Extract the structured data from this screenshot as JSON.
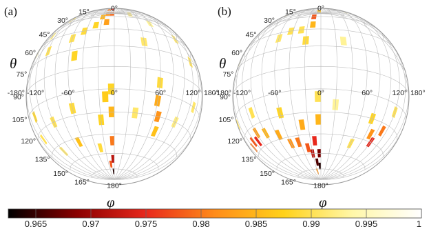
{
  "chart_data": {
    "type": "heatmap",
    "projection": "orthographic sphere, phi (azimuth) vs theta (polar)",
    "colormap": [
      "#000000",
      "#8b0000",
      "#e8281c",
      "#ff8c1a",
      "#ffd21a",
      "#fff7a8",
      "#ffffff"
    ],
    "colorbar": {
      "min": 0.9625,
      "max": 1.0,
      "ticks": [
        0.965,
        0.97,
        0.975,
        0.98,
        0.985,
        0.99,
        0.995,
        1
      ],
      "tick_labels": [
        "0.965",
        "0.97",
        "0.975",
        "0.98",
        "0.985",
        "0.99",
        "0.995",
        "1"
      ]
    },
    "theta_symbol": "θ",
    "phi_symbol": "φ",
    "theta_ticks": [
      "0°",
      "15°",
      "30°",
      "45°",
      "60°",
      "75°",
      "90°",
      "105°",
      "120°",
      "135°",
      "150°",
      "165°",
      "180°"
    ],
    "phi_ticks": [
      "-180°",
      "-120°",
      "-60°",
      "0°",
      "60°",
      "120°",
      "180°"
    ],
    "panels": [
      {
        "label": "(a)",
        "cells": [
          {
            "phi": -4,
            "theta": 8,
            "value": 0.968
          },
          {
            "phi": -4,
            "theta": 18,
            "value": 0.97
          },
          {
            "phi": -4,
            "theta": 28,
            "value": 0.975
          },
          {
            "phi": -12,
            "theta": 30,
            "value": 0.98
          },
          {
            "phi": -12,
            "theta": 40,
            "value": 0.982
          },
          {
            "phi": -4,
            "theta": 40,
            "value": 0.979
          },
          {
            "phi": -20,
            "theta": 45,
            "value": 0.985
          },
          {
            "phi": -12,
            "theta": 52,
            "value": 0.983
          },
          {
            "phi": -28,
            "theta": 55,
            "value": 0.988
          },
          {
            "phi": -44,
            "theta": 60,
            "value": 0.989
          },
          {
            "phi": -60,
            "theta": 65,
            "value": 0.99
          },
          {
            "phi": -52,
            "theta": 80,
            "value": 0.988
          },
          {
            "phi": -90,
            "theta": 40,
            "value": 0.991
          },
          {
            "phi": -100,
            "theta": 70,
            "value": 0.99
          },
          {
            "phi": -110,
            "theta": 55,
            "value": 0.992
          },
          {
            "phi": -140,
            "theta": 65,
            "value": 0.993
          },
          {
            "phi": 30,
            "theta": 40,
            "value": 0.992
          },
          {
            "phi": 40,
            "theta": 70,
            "value": 0.991
          },
          {
            "phi": 60,
            "theta": 50,
            "value": 0.993
          },
          {
            "phi": 100,
            "theta": 60,
            "value": 0.991
          },
          {
            "phi": 120,
            "theta": 75,
            "value": 0.99
          },
          {
            "phi": -4,
            "theta": 105,
            "value": 0.988
          },
          {
            "phi": -12,
            "theta": 110,
            "value": 0.987
          },
          {
            "phi": -4,
            "theta": 120,
            "value": 0.985
          },
          {
            "phi": -20,
            "theta": 125,
            "value": 0.988
          },
          {
            "phi": -4,
            "theta": 140,
            "value": 0.98
          },
          {
            "phi": -4,
            "theta": 155,
            "value": 0.972
          },
          {
            "phi": -4,
            "theta": 168,
            "value": 0.964
          },
          {
            "phi": -12,
            "theta": 160,
            "value": 0.978
          },
          {
            "phi": 60,
            "theta": 110,
            "value": 0.984
          },
          {
            "phi": 66,
            "theta": 120,
            "value": 0.982
          },
          {
            "phi": 70,
            "theta": 130,
            "value": 0.986
          },
          {
            "phi": 60,
            "theta": 98,
            "value": 0.989
          },
          {
            "phi": -60,
            "theta": 115,
            "value": 0.989
          },
          {
            "phi": -70,
            "theta": 138,
            "value": 0.986
          },
          {
            "phi": -100,
            "theta": 120,
            "value": 0.99
          },
          {
            "phi": -140,
            "theta": 110,
            "value": 0.988
          },
          {
            "phi": -150,
            "theta": 125,
            "value": 0.99
          },
          {
            "phi": -120,
            "theta": 140,
            "value": 0.991
          },
          {
            "phi": 30,
            "theta": 120,
            "value": 0.991
          },
          {
            "phi": 100,
            "theta": 120,
            "value": 0.992
          },
          {
            "phi": 130,
            "theta": 105,
            "value": 0.991
          },
          {
            "phi": -30,
            "theta": 145,
            "value": 0.989
          }
        ]
      },
      {
        "label": "(b)",
        "cells": [
          {
            "phi": -4,
            "theta": 20,
            "value": 0.99
          },
          {
            "phi": -4,
            "theta": 35,
            "value": 0.986
          },
          {
            "phi": -12,
            "theta": 45,
            "value": 0.978
          },
          {
            "phi": -12,
            "theta": 55,
            "value": 0.985
          },
          {
            "phi": -28,
            "theta": 60,
            "value": 0.99
          },
          {
            "phi": -44,
            "theta": 60,
            "value": 0.99
          },
          {
            "phi": -60,
            "theta": 65,
            "value": 0.991
          },
          {
            "phi": -20,
            "theta": 70,
            "value": 0.989
          },
          {
            "phi": -110,
            "theta": 28,
            "value": 0.99
          },
          {
            "phi": 60,
            "theta": 30,
            "value": 0.993
          },
          {
            "phi": -150,
            "theta": 70,
            "value": 0.992
          },
          {
            "phi": 30,
            "theta": 70,
            "value": 0.993
          },
          {
            "phi": -4,
            "theta": 110,
            "value": 0.99
          },
          {
            "phi": -4,
            "theta": 125,
            "value": 0.985
          },
          {
            "phi": -12,
            "theta": 140,
            "value": 0.975
          },
          {
            "phi": -4,
            "theta": 150,
            "value": 0.968
          },
          {
            "phi": -4,
            "theta": 162,
            "value": 0.964
          },
          {
            "phi": -12,
            "theta": 158,
            "value": 0.966
          },
          {
            "phi": -20,
            "theta": 150,
            "value": 0.972
          },
          {
            "phi": -28,
            "theta": 145,
            "value": 0.978
          },
          {
            "phi": -44,
            "theta": 140,
            "value": 0.98
          },
          {
            "phi": -60,
            "theta": 140,
            "value": 0.982
          },
          {
            "phi": -76,
            "theta": 132,
            "value": 0.984
          },
          {
            "phi": -100,
            "theta": 128,
            "value": 0.985
          },
          {
            "phi": -120,
            "theta": 125,
            "value": 0.983
          },
          {
            "phi": -130,
            "theta": 130,
            "value": 0.975
          },
          {
            "phi": -145,
            "theta": 128,
            "value": 0.978
          },
          {
            "phi": -160,
            "theta": 130,
            "value": 0.98
          },
          {
            "phi": -110,
            "theta": 112,
            "value": 0.99
          },
          {
            "phi": -60,
            "theta": 118,
            "value": 0.988
          },
          {
            "phi": -30,
            "theta": 128,
            "value": 0.984
          },
          {
            "phi": -20,
            "theta": 168,
            "value": 0.982
          },
          {
            "phi": 90,
            "theta": 130,
            "value": 0.982
          },
          {
            "phi": 100,
            "theta": 135,
            "value": 0.975
          },
          {
            "phi": 110,
            "theta": 125,
            "value": 0.98
          },
          {
            "phi": 80,
            "theta": 120,
            "value": 0.988
          },
          {
            "phi": 120,
            "theta": 110,
            "value": 0.99
          },
          {
            "phi": 20,
            "theta": 115,
            "value": 0.993
          },
          {
            "phi": 60,
            "theta": 140,
            "value": 0.99
          },
          {
            "phi": -170,
            "theta": 110,
            "value": 0.99
          }
        ]
      }
    ]
  }
}
